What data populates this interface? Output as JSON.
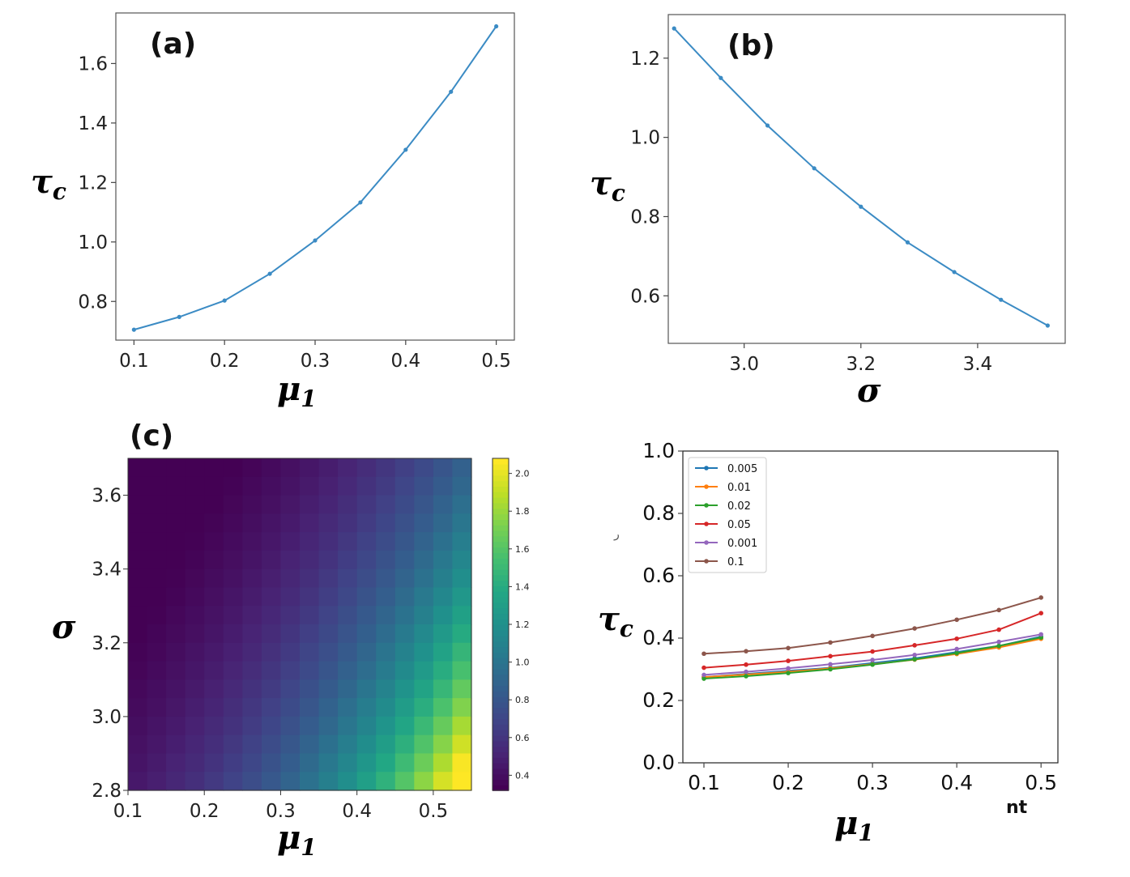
{
  "chart_data": [
    {
      "id": "a",
      "type": "line",
      "panel_label": "(a)",
      "xlabel": "μ",
      "xlabel_sub": "1",
      "ylabel": "τ",
      "ylabel_sub": "c",
      "x": [
        0.1,
        0.15,
        0.2,
        0.25,
        0.3,
        0.35,
        0.4,
        0.45,
        0.5
      ],
      "y": [
        0.705,
        0.748,
        0.803,
        0.893,
        1.005,
        1.133,
        1.31,
        1.505,
        1.725
      ],
      "xticks": [
        "0.1",
        "0.2",
        "0.3",
        "0.4",
        "0.5"
      ],
      "yticks": [
        "0.8",
        "1.0",
        "1.2",
        "1.4",
        "1.6"
      ],
      "xlim": [
        0.08,
        0.52
      ],
      "ylim": [
        0.67,
        1.77
      ],
      "color": "#3b8bc4"
    },
    {
      "id": "b",
      "type": "line",
      "panel_label": "(b)",
      "xlabel": "σ",
      "ylabel": "τ",
      "ylabel_sub": "c",
      "x": [
        2.88,
        2.96,
        3.04,
        3.12,
        3.2,
        3.28,
        3.36,
        3.44,
        3.52
      ],
      "y": [
        1.275,
        1.15,
        1.03,
        0.922,
        0.825,
        0.735,
        0.66,
        0.59,
        0.525
      ],
      "xticks": [
        "3.0",
        "3.2",
        "3.4"
      ],
      "yticks": [
        "0.6",
        "0.8",
        "1.0",
        "1.2"
      ],
      "xlim": [
        2.87,
        3.55
      ],
      "ylim": [
        0.48,
        1.31
      ],
      "color": "#3b8bc4"
    },
    {
      "id": "c",
      "type": "heatmap",
      "panel_label": "(c)",
      "xlabel": "μ",
      "xlabel_sub": "1",
      "ylabel": "σ",
      "xlim": [
        0.1,
        0.55
      ],
      "ylim": [
        2.8,
        3.7
      ],
      "grid_cols": 18,
      "grid_rows": 18,
      "xticks": [
        "0.1",
        "0.2",
        "0.3",
        "0.4",
        "0.5"
      ],
      "yticks": [
        "2.8",
        "3.0",
        "3.2",
        "3.4",
        "3.6"
      ],
      "colorbar_ticks": [
        "0.4",
        "0.6",
        "0.8",
        "1.0",
        "1.2",
        "1.4",
        "1.6",
        "1.8",
        "2.0"
      ],
      "value_range": [
        0.32,
        2.08
      ],
      "colormap": "viridis"
    },
    {
      "id": "d",
      "type": "line",
      "xlabel": "μ",
      "xlabel_sub": "1",
      "ylabel": "τ",
      "ylabel_sub": "c",
      "stray_text": "nt",
      "x": [
        0.1,
        0.15,
        0.2,
        0.25,
        0.3,
        0.35,
        0.4,
        0.45,
        0.5
      ],
      "xticks": [
        "0.1",
        "0.2",
        "0.3",
        "0.4",
        "0.5"
      ],
      "yticks": [
        "0.0",
        "0.2",
        "0.4",
        "0.6",
        "0.8",
        "1.0"
      ],
      "xlim": [
        0.075,
        0.52
      ],
      "ylim": [
        0.0,
        1.0
      ],
      "series": [
        {
          "name": "0.005",
          "color": "#1f77b4",
          "values": [
            0.275,
            0.285,
            0.295,
            0.305,
            0.32,
            0.335,
            0.355,
            0.375,
            0.405
          ]
        },
        {
          "name": "0.01",
          "color": "#ff7f0e",
          "values": [
            0.275,
            0.283,
            0.292,
            0.303,
            0.316,
            0.331,
            0.349,
            0.37,
            0.398
          ]
        },
        {
          "name": "0.02",
          "color": "#2ca02c",
          "values": [
            0.27,
            0.278,
            0.288,
            0.3,
            0.315,
            0.332,
            0.352,
            0.375,
            0.402
          ]
        },
        {
          "name": "0.05",
          "color": "#d62728",
          "values": [
            0.305,
            0.315,
            0.327,
            0.342,
            0.357,
            0.377,
            0.398,
            0.427,
            0.48
          ]
        },
        {
          "name": "0.001",
          "color": "#9467bd",
          "values": [
            0.282,
            0.292,
            0.303,
            0.316,
            0.33,
            0.346,
            0.365,
            0.388,
            0.412
          ]
        },
        {
          "name": "0.1",
          "color": "#8c564b",
          "values": [
            0.35,
            0.358,
            0.368,
            0.386,
            0.407,
            0.431,
            0.459,
            0.49,
            0.53
          ]
        }
      ]
    }
  ]
}
